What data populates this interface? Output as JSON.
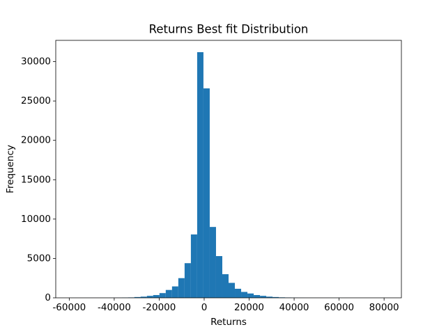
{
  "chart_data": {
    "type": "histogram",
    "title": "Returns Best fit Distribution",
    "x_label": "Returns",
    "y_label": "Frequency",
    "color": "#1f77b4",
    "bins": [
      -59000,
      -56206,
      -53412,
      -50618,
      -47824,
      -45030,
      -42236,
      -39442,
      -36648,
      -33854,
      -31060,
      -28266,
      -25472,
      -22678,
      -19884,
      -17090,
      -14296,
      -11502,
      -8708,
      -5914,
      -3120,
      -326,
      2468,
      5262,
      8056,
      10850,
      13644,
      16438,
      19232,
      22026,
      24820,
      27614,
      30408,
      33202,
      35996,
      38790,
      41584,
      44378,
      47172,
      49966,
      52760,
      55554,
      58348,
      61142,
      63936,
      66730,
      69524,
      72318,
      75112,
      77906,
      80700
    ],
    "values": [
      1,
      0,
      1,
      2,
      3,
      5,
      8,
      15,
      30,
      50,
      100,
      150,
      250,
      350,
      600,
      1000,
      1450,
      2500,
      4400,
      8050,
      31200,
      26600,
      9000,
      5300,
      3000,
      1900,
      1150,
      750,
      550,
      350,
      250,
      150,
      100,
      60,
      40,
      20,
      10,
      6,
      4,
      3,
      2,
      1,
      1,
      1,
      0,
      0,
      0,
      0,
      0,
      1
    ],
    "xlim": [
      -66000,
      87700
    ],
    "ylim": [
      0,
      32700
    ],
    "xticks": [
      -60000,
      -40000,
      -20000,
      0,
      20000,
      40000,
      60000,
      80000
    ],
    "yticks": [
      0,
      5000,
      10000,
      15000,
      20000,
      25000,
      30000
    ]
  }
}
